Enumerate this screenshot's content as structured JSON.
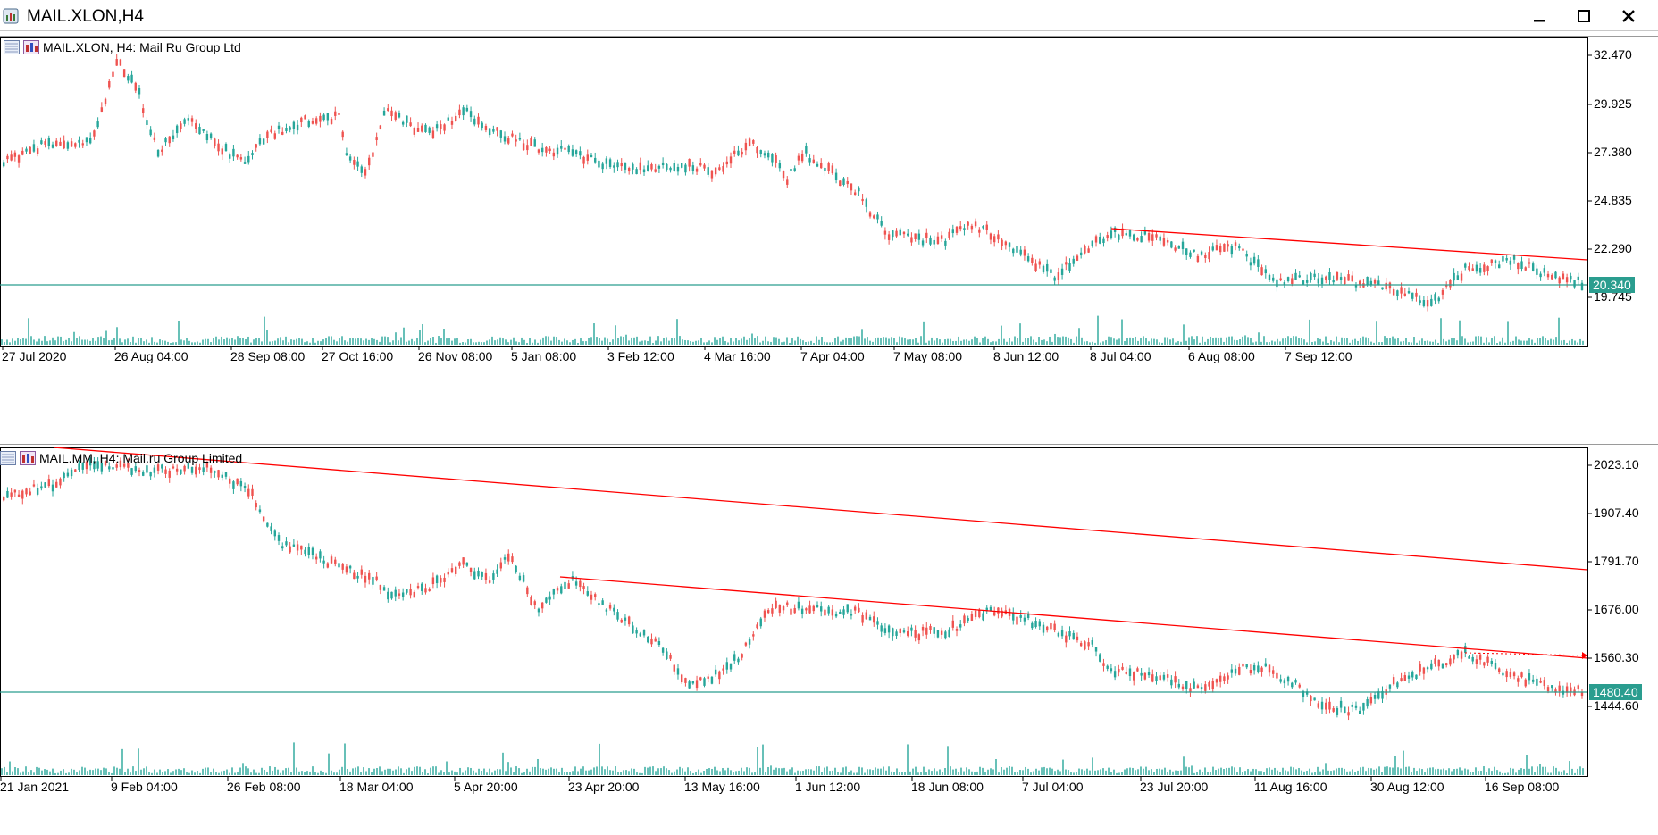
{
  "window": {
    "title": "MAIL.XLON,H4",
    "minimize_glyph": "—",
    "maximize_glyph": "☐",
    "close_glyph": "✕"
  },
  "charts": [
    {
      "label": "MAIL.XLON, H4:  Mail Ru Group Ltd",
      "price_levels": [
        "32.470",
        "29.925",
        "27.380",
        "24.835",
        "22.290",
        "19.745"
      ],
      "current_price": "20.340",
      "time_labels": [
        "27 Jul 2020",
        "26 Aug 04:00",
        "28 Sep 08:00",
        "27 Oct 16:00",
        "26 Nov 08:00",
        "5 Jan 08:00",
        "3 Feb 12:00",
        "4 Mar 16:00",
        "7 Apr 04:00",
        "7 May 08:00",
        "8 Jun 12:00",
        "8 Jul 04:00",
        "6 Aug 08:00",
        "7 Sep 12:00"
      ]
    },
    {
      "label": "MAIL.MM, H4:  Mail.ru Group Limited",
      "price_levels": [
        "2023.10",
        "1907.40",
        "1791.70",
        "1676.00",
        "1560.30",
        "1444.60"
      ],
      "current_price": "1480.40",
      "time_labels": [
        "21 Jan 2021",
        "9 Feb 04:00",
        "26 Feb 08:00",
        "18 Mar 04:00",
        "5 Apr 20:00",
        "23 Apr 20:00",
        "13 May 16:00",
        "1 Jun 12:00",
        "18 Jun 08:00",
        "7 Jul 04:00",
        "23 Jul 20:00",
        "11 Aug 16:00",
        "30 Aug 12:00",
        "16 Sep 08:00"
      ]
    }
  ],
  "colors": {
    "bull_candle": "#26a69a",
    "bear_candle": "#ef5350",
    "trendline": "#ff0000",
    "price_line": "#2a9d8f",
    "volume": "#26a69a"
  }
}
